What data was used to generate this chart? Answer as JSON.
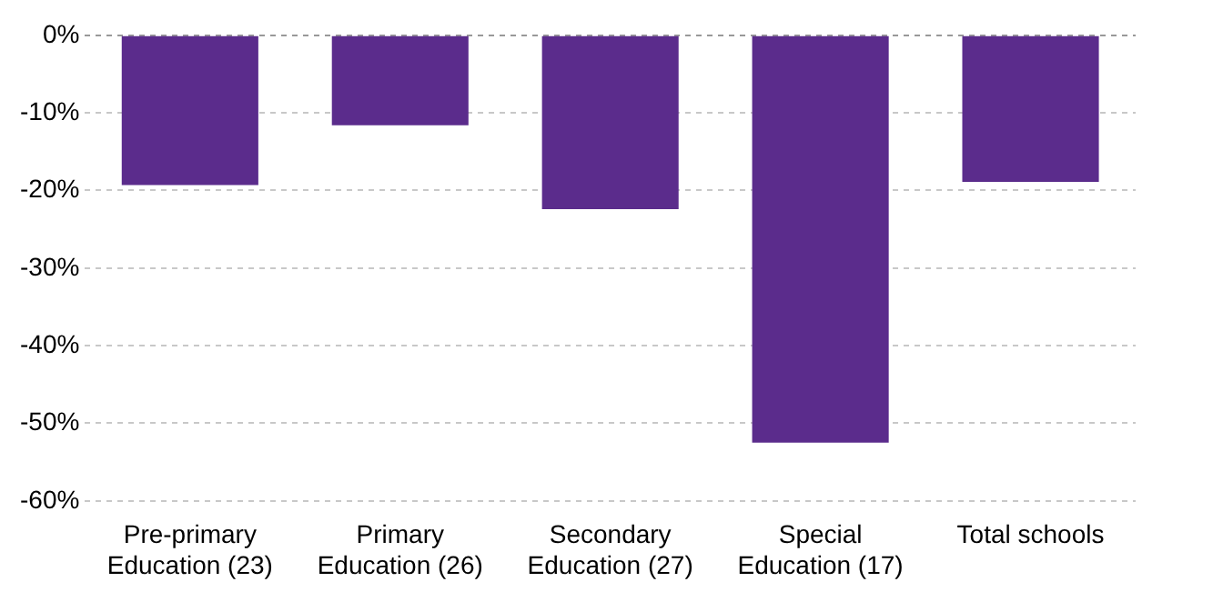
{
  "chart_data": {
    "type": "bar",
    "categories": [
      "Pre-primary Education (23)",
      "Primary Education (26)",
      "Secondary Education (27)",
      "Special Education (17)",
      "Total schools"
    ],
    "values": [
      -19.3,
      -11.6,
      -22.4,
      -52.5,
      -18.9
    ],
    "color": "#5b2c8c",
    "ylim": [
      -60,
      0
    ],
    "yticks": [
      {
        "value": -60,
        "label": "-60%"
      },
      {
        "value": -50,
        "label": "-50%"
      },
      {
        "value": -40,
        "label": "-40%"
      },
      {
        "value": -30,
        "label": "-30%"
      },
      {
        "value": -20,
        "label": "-20%"
      },
      {
        "value": -10,
        "label": "-10%"
      },
      {
        "value": 0,
        "label": "0%"
      }
    ],
    "grid": "y"
  }
}
